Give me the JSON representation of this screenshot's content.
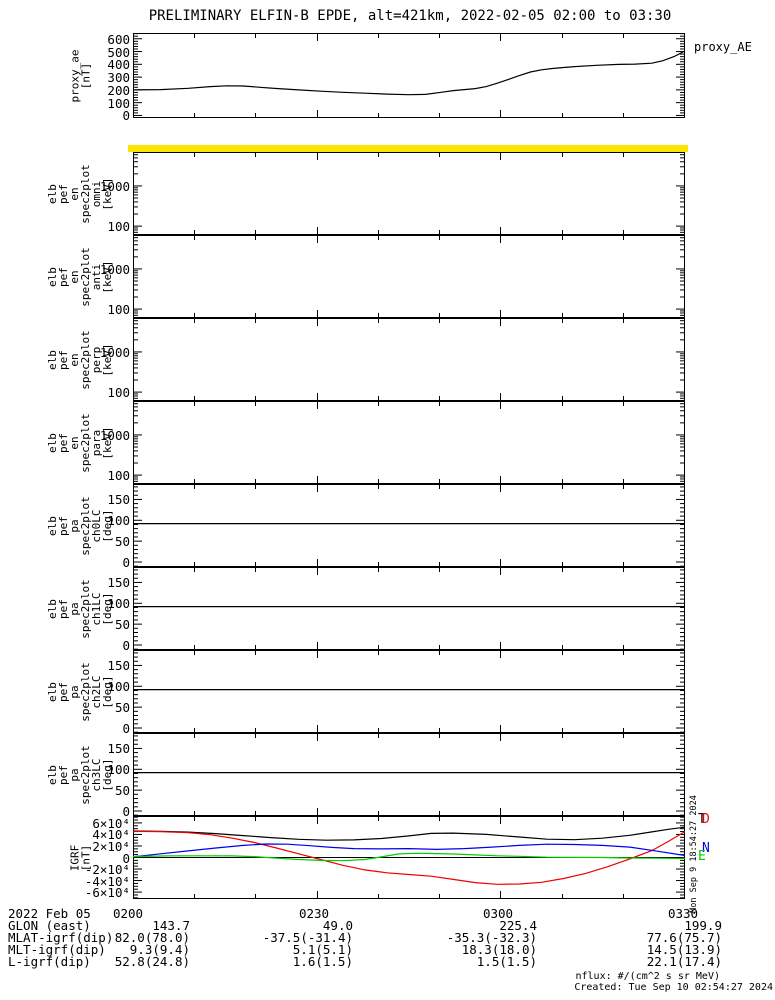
{
  "title": "PRELIMINARY ELFIN-B EPDE, alt=421km, 2022-02-05 02:00 to 03:30",
  "colors": {
    "foreground": "#000000",
    "saturation_band": "#ffe400",
    "series_total": "#000000",
    "series_d": "#ee0000",
    "series_n": "#0000ee",
    "series_e": "#00cc00"
  },
  "panels": [
    {
      "label": "proxy_ae\n[nT]",
      "right_label": "proxy_AE"
    },
    {
      "label": "elb\npef\nen\nspec2plot\nomni\n[keV]"
    },
    {
      "label": "elb\npef\nen\nspec2plot\nanti\n[keV]"
    },
    {
      "label": "elb\npef\nen\nspec2plot\nperp\n[keV]"
    },
    {
      "label": "elb\npef\nen\nspec2plot\npara\n[keV]"
    },
    {
      "label": "elb\npef\npa\nspec2plot\nch0LC\n[deg]"
    },
    {
      "label": "elb\npef\npa\nspec2plot\nch1LC\n[deg]"
    },
    {
      "label": "elb\npef\npa\nspec2plot\nch2LC\n[deg]"
    },
    {
      "label": "elb\npef\npa\nspec2plot\nch3LC\n[deg]"
    },
    {
      "label": "IGRF\n[nT]"
    }
  ],
  "legend": {
    "t": "T",
    "d": "D",
    "n": "N",
    "e": "E"
  },
  "time_axis": {
    "tick_labels": [
      "0200",
      "0230",
      "0300",
      "0330"
    ],
    "minor_tick_minutes": 10,
    "range": "2022-02-05 02:00 to 03:30"
  },
  "footer": {
    "rows": [
      {
        "label": "2022 Feb 05",
        "values": [
          "0200",
          "0230",
          "0300",
          "0330"
        ]
      },
      {
        "label": "GLON (east)",
        "values": [
          "143.7",
          "49.0",
          "225.4",
          "199.9"
        ]
      },
      {
        "label": "MLAT-igrf(dip)",
        "values": [
          "82.0(78.0)",
          "-37.5(-31.4)",
          "-35.3(-32.3)",
          "77.6(75.7)"
        ]
      },
      {
        "label": "MLT-igrf(dip)",
        "values": [
          "9.3(9.4)",
          "5.1(5.1)",
          "18.3(18.0)",
          "14.5(13.9)"
        ]
      },
      {
        "label": "L-igrf(dip)",
        "values": [
          "52.8(24.8)",
          "1.6(1.5)",
          "1.5(1.5)",
          "22.1(17.4)"
        ]
      }
    ]
  },
  "notes": {
    "nflux": "nflux: #/(cm^2 s sr MeV)",
    "created": "Created: Tue Sep 10 02:54:27 2024",
    "side_created": "Mon Sep 9 18:54:27 2024"
  },
  "chart_data": [
    {
      "type": "line",
      "title": "proxy_AE",
      "ylabel": "proxy_ae [nT]",
      "ylim": [
        -20,
        645
      ],
      "grid": false,
      "yticks": [
        {
          "label": "600",
          "v": 600
        },
        {
          "label": "500",
          "v": 500
        },
        {
          "label": "400",
          "v": 400
        },
        {
          "label": "300",
          "v": 300
        },
        {
          "label": "200",
          "v": 200
        },
        {
          "label": "100",
          "v": 100
        },
        {
          "label": "0",
          "v": 0
        }
      ],
      "edge_ticks": {
        "minor_step": 20,
        "major_step": 100
      },
      "series": [
        {
          "name": "proxy_AE",
          "color": "#000000",
          "x": [
            0,
            0.05,
            0.1,
            0.14,
            0.17,
            0.2,
            0.23,
            0.26,
            0.3,
            0.34,
            0.38,
            0.42,
            0.46,
            0.5,
            0.53,
            0.56,
            0.58,
            0.6,
            0.62,
            0.64,
            0.66,
            0.68,
            0.7,
            0.72,
            0.74,
            0.76,
            0.78,
            0.8,
            0.84,
            0.88,
            0.91,
            0.94,
            0.96,
            0.98,
            1.0
          ],
          "y": [
            200,
            202,
            212,
            226,
            232,
            230,
            220,
            211,
            200,
            190,
            181,
            174,
            167,
            162,
            165,
            182,
            194,
            202,
            210,
            226,
            252,
            282,
            312,
            340,
            357,
            367,
            375,
            382,
            392,
            399,
            402,
            409,
            428,
            460,
            505
          ]
        }
      ]
    },
    {
      "type": "spectrogram",
      "ylabel": "elb_pef_en_spec2plot_omni [keV]",
      "yscale": "log",
      "ylim": [
        60,
        7000
      ],
      "empty": true,
      "top_band_color": "#ffe400",
      "yticks": [
        {
          "label": "1000",
          "v": 1000
        },
        {
          "label": "100",
          "v": 100
        }
      ],
      "edge_ticks": {
        "log": true
      },
      "series": []
    },
    {
      "type": "spectrogram",
      "ylabel": "elb_pef_en_spec2plot_anti [keV]",
      "yscale": "log",
      "ylim": [
        60,
        7000
      ],
      "empty": true,
      "yticks": [
        {
          "label": "1000",
          "v": 1000
        },
        {
          "label": "100",
          "v": 100
        }
      ],
      "edge_ticks": {
        "log": true
      },
      "series": []
    },
    {
      "type": "spectrogram",
      "ylabel": "elb_pef_en_spec2plot_perp [keV]",
      "yscale": "log",
      "ylim": [
        60,
        7000
      ],
      "empty": true,
      "yticks": [
        {
          "label": "1000",
          "v": 1000
        },
        {
          "label": "100",
          "v": 100
        }
      ],
      "edge_ticks": {
        "log": true
      },
      "series": []
    },
    {
      "type": "spectrogram",
      "ylabel": "elb_pef_en_spec2plot_para [keV]",
      "yscale": "log",
      "ylim": [
        60,
        7000
      ],
      "empty": true,
      "yticks": [
        {
          "label": "1000",
          "v": 1000
        },
        {
          "label": "100",
          "v": 100
        }
      ],
      "edge_ticks": {
        "log": true
      },
      "series": []
    },
    {
      "type": "line",
      "ylabel": "elb_pef_pa_spec2plot_ch0LC [deg]",
      "ylim": [
        -12,
        187
      ],
      "yticks": [
        {
          "label": "150",
          "v": 150
        },
        {
          "label": "100",
          "v": 100
        },
        {
          "label": "50",
          "v": 50
        },
        {
          "label": "0",
          "v": 0
        }
      ],
      "edge_ticks": {
        "minor_step": 10,
        "major_step": 50
      },
      "series": [
        {
          "name": "loss_cone",
          "color": "#000000",
          "x": [
            0,
            1
          ],
          "y": [
            92,
            92
          ]
        }
      ]
    },
    {
      "type": "line",
      "ylabel": "elb_pef_pa_spec2plot_ch1LC [deg]",
      "ylim": [
        -12,
        187
      ],
      "yticks": [
        {
          "label": "150",
          "v": 150
        },
        {
          "label": "100",
          "v": 100
        },
        {
          "label": "50",
          "v": 50
        },
        {
          "label": "0",
          "v": 0
        }
      ],
      "edge_ticks": {
        "minor_step": 10,
        "major_step": 50
      },
      "series": [
        {
          "name": "loss_cone",
          "color": "#000000",
          "x": [
            0,
            1
          ],
          "y": [
            92,
            92
          ]
        }
      ]
    },
    {
      "type": "line",
      "ylabel": "elb_pef_pa_spec2plot_ch2LC [deg]",
      "ylim": [
        -12,
        187
      ],
      "yticks": [
        {
          "label": "150",
          "v": 150
        },
        {
          "label": "100",
          "v": 100
        },
        {
          "label": "50",
          "v": 50
        },
        {
          "label": "0",
          "v": 0
        }
      ],
      "edge_ticks": {
        "minor_step": 10,
        "major_step": 50
      },
      "series": [
        {
          "name": "loss_cone",
          "color": "#000000",
          "x": [
            0,
            1
          ],
          "y": [
            92,
            92
          ]
        }
      ]
    },
    {
      "type": "line",
      "ylabel": "elb_pef_pa_spec2plot_ch3LC [deg]",
      "ylim": [
        -12,
        187
      ],
      "yticks": [
        {
          "label": "150",
          "v": 150
        },
        {
          "label": "100",
          "v": 100
        },
        {
          "label": "50",
          "v": 50
        },
        {
          "label": "0",
          "v": 0
        }
      ],
      "edge_ticks": {
        "minor_step": 10,
        "major_step": 50
      },
      "series": [
        {
          "name": "loss_cone",
          "color": "#000000",
          "x": [
            0,
            1
          ],
          "y": [
            92,
            92
          ]
        }
      ]
    },
    {
      "type": "line",
      "ylabel": "IGRF [nT]",
      "ylim": [
        -72000,
        72000
      ],
      "zero_line": true,
      "yticks": [
        {
          "label": "6×10⁴",
          "v": 60000
        },
        {
          "label": "4×10⁴",
          "v": 40000
        },
        {
          "label": "2×10⁴",
          "v": 20000
        },
        {
          "label": "0",
          "v": 0
        },
        {
          "label": "-2×10⁴",
          "v": -20000
        },
        {
          "label": "-4×10⁴",
          "v": -40000
        },
        {
          "label": "-6×10⁴",
          "v": -60000
        }
      ],
      "edge_ticks": {
        "minor_step": 5000,
        "major_step": 20000
      },
      "series": [
        {
          "name": "T",
          "color": "#000000",
          "x": [
            0,
            0.05,
            0.1,
            0.15,
            0.2,
            0.25,
            0.3,
            0.35,
            0.4,
            0.45,
            0.5,
            0.54,
            0.58,
            0.64,
            0.7,
            0.75,
            0.8,
            0.85,
            0.9,
            0.94,
            0.97,
            1.0
          ],
          "y": [
            46000,
            45500,
            44000,
            41500,
            38000,
            34500,
            31500,
            30000,
            30500,
            33000,
            37500,
            41800,
            42300,
            40000,
            35500,
            31800,
            30800,
            33500,
            38500,
            44500,
            49000,
            52500
          ]
        },
        {
          "name": "D",
          "color": "#ee0000",
          "x": [
            0,
            0.05,
            0.1,
            0.14,
            0.18,
            0.22,
            0.26,
            0.3,
            0.34,
            0.38,
            0.42,
            0.46,
            0.5,
            0.54,
            0.58,
            0.62,
            0.66,
            0.7,
            0.74,
            0.78,
            0.82,
            0.86,
            0.9,
            0.94,
            0.97,
            1.0
          ],
          "y": [
            45500,
            45000,
            43000,
            39500,
            33500,
            26000,
            16500,
            6500,
            -3500,
            -13500,
            -21500,
            -26500,
            -29500,
            -32500,
            -38000,
            -43500,
            -46500,
            -46000,
            -43000,
            -36500,
            -27500,
            -16000,
            -2500,
            12000,
            28000,
            45000
          ]
        },
        {
          "name": "N",
          "color": "#0000ee",
          "x": [
            0,
            0.05,
            0.1,
            0.15,
            0.2,
            0.24,
            0.28,
            0.32,
            0.36,
            0.4,
            0.45,
            0.5,
            0.55,
            0.6,
            0.65,
            0.7,
            0.75,
            0.8,
            0.85,
            0.9,
            0.95,
            1.0
          ],
          "y": [
            1000,
            6500,
            11500,
            16500,
            21000,
            23500,
            23000,
            20500,
            17500,
            15500,
            15000,
            15500,
            14000,
            15500,
            18000,
            21000,
            23000,
            22500,
            21000,
            18000,
            11000,
            3500
          ]
        },
        {
          "name": "E",
          "color": "#00cc00",
          "x": [
            0,
            0.06,
            0.12,
            0.18,
            0.22,
            0.26,
            0.3,
            0.34,
            0.38,
            0.42,
            0.45,
            0.48,
            0.51,
            0.54,
            0.58,
            0.62,
            0.66,
            0.7,
            0.75,
            0.8,
            0.85,
            0.9,
            0.95,
            1.0
          ],
          "y": [
            1500,
            2800,
            3000,
            2800,
            1500,
            -1000,
            -3500,
            -5000,
            -5500,
            -3500,
            1000,
            6000,
            7200,
            7000,
            6000,
            4500,
            3000,
            2000,
            500,
            200,
            0,
            -800,
            -1200,
            -1800
          ]
        }
      ]
    }
  ]
}
